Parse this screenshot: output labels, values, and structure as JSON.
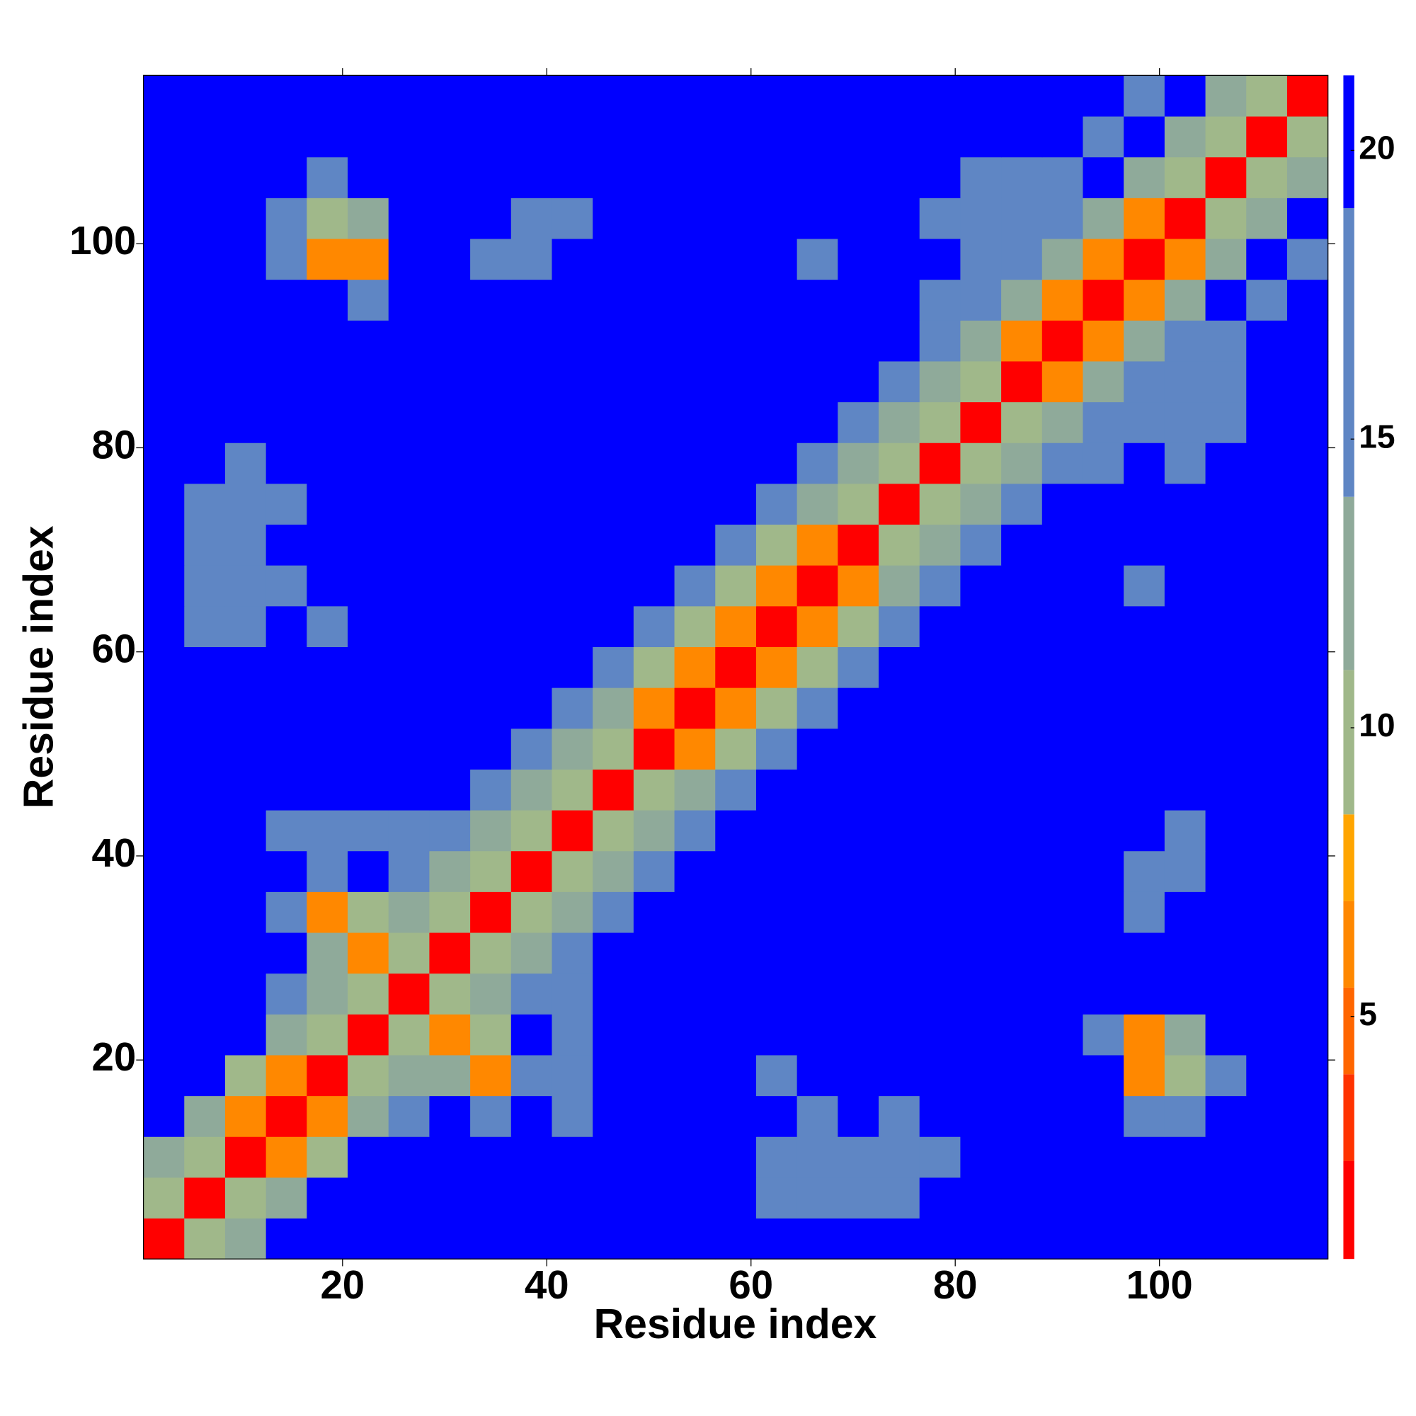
{
  "chart_data": {
    "type": "heatmap",
    "xlabel": "Residue index",
    "ylabel": "Residue index",
    "x": [
      2.5,
      6.5,
      10.5,
      14.5,
      18.5,
      22.5,
      26.5,
      30.5,
      34.5,
      38.5,
      42.5,
      46.5,
      50.5,
      54.5,
      58.5,
      62.5,
      66.5,
      70.5,
      74.5,
      78.5,
      82.5,
      86.5,
      90.5,
      94.5,
      98.5,
      102.5,
      106.5,
      110.5,
      114.5
    ],
    "y": [
      2.5,
      6.5,
      10.5,
      14.5,
      18.5,
      22.5,
      26.5,
      30.5,
      34.5,
      38.5,
      42.5,
      46.5,
      50.5,
      54.5,
      58.5,
      62.5,
      66.5,
      70.5,
      74.5,
      78.5,
      82.5,
      86.5,
      90.5,
      94.5,
      98.5,
      102.5,
      106.5,
      110.5,
      114.5
    ],
    "z": [
      [
        2,
        9,
        13,
        21,
        21,
        21,
        21,
        21,
        21,
        21,
        21,
        21,
        21,
        21,
        21,
        21,
        21,
        21,
        21,
        21,
        21,
        21,
        21,
        21,
        21,
        21,
        21,
        21,
        21
      ],
      [
        9,
        2,
        9,
        13,
        21,
        21,
        21,
        21,
        21,
        21,
        21,
        21,
        21,
        21,
        21,
        16,
        16,
        17,
        18,
        21,
        21,
        21,
        21,
        21,
        21,
        21,
        21,
        21,
        21
      ],
      [
        13,
        9,
        2,
        7,
        9,
        21,
        21,
        21,
        21,
        21,
        21,
        21,
        21,
        21,
        21,
        16,
        16,
        16,
        16,
        17,
        21,
        21,
        21,
        21,
        21,
        21,
        21,
        21,
        21
      ],
      [
        21,
        13,
        7,
        2,
        7,
        13,
        17,
        21,
        16,
        21,
        18,
        21,
        21,
        21,
        21,
        21,
        17,
        21,
        18,
        21,
        21,
        21,
        21,
        21,
        17,
        17,
        21,
        21,
        21
      ],
      [
        21,
        21,
        9,
        7,
        2,
        9,
        13,
        13,
        6,
        15,
        17,
        21,
        21,
        21,
        21,
        18,
        21,
        21,
        21,
        21,
        21,
        21,
        21,
        21,
        6,
        9,
        17,
        21,
        21
      ],
      [
        21,
        21,
        21,
        13,
        9,
        2,
        9,
        6,
        10,
        21,
        16,
        21,
        21,
        21,
        21,
        21,
        21,
        21,
        21,
        21,
        21,
        21,
        21,
        17,
        6,
        12,
        21,
        21,
        21
      ],
      [
        21,
        21,
        21,
        17,
        13,
        9,
        2,
        9,
        13,
        17,
        16,
        21,
        21,
        21,
        21,
        21,
        21,
        21,
        21,
        21,
        21,
        21,
        21,
        21,
        21,
        21,
        21,
        21,
        21
      ],
      [
        21,
        21,
        21,
        21,
        13,
        6,
        9,
        2,
        9,
        13,
        17,
        21,
        21,
        21,
        21,
        21,
        21,
        21,
        21,
        21,
        21,
        21,
        21,
        21,
        21,
        21,
        21,
        21,
        21
      ],
      [
        21,
        21,
        21,
        16,
        6,
        10,
        13,
        9,
        2,
        9,
        13,
        17,
        21,
        21,
        21,
        21,
        21,
        21,
        21,
        21,
        21,
        21,
        21,
        21,
        16,
        21,
        21,
        21,
        21
      ],
      [
        21,
        21,
        21,
        21,
        15,
        21,
        17,
        13,
        9,
        2,
        9,
        13,
        17,
        21,
        21,
        21,
        21,
        21,
        21,
        21,
        21,
        21,
        21,
        21,
        15,
        16,
        21,
        21,
        21
      ],
      [
        21,
        21,
        21,
        18,
        17,
        16,
        16,
        17,
        13,
        9,
        2,
        9,
        13,
        17,
        21,
        21,
        21,
        21,
        21,
        21,
        21,
        21,
        21,
        21,
        21,
        17,
        21,
        21,
        21
      ],
      [
        21,
        21,
        21,
        21,
        21,
        21,
        21,
        21,
        17,
        13,
        9,
        2,
        9,
        13,
        17,
        21,
        21,
        21,
        21,
        21,
        21,
        21,
        21,
        21,
        21,
        21,
        21,
        21,
        21
      ],
      [
        21,
        21,
        21,
        21,
        21,
        21,
        21,
        21,
        21,
        17,
        13,
        9,
        2,
        6,
        9,
        17,
        21,
        21,
        21,
        21,
        21,
        21,
        21,
        21,
        21,
        21,
        21,
        21,
        21
      ],
      [
        21,
        21,
        21,
        21,
        21,
        21,
        21,
        21,
        21,
        21,
        17,
        13,
        6,
        2,
        6,
        9,
        17,
        21,
        21,
        21,
        21,
        21,
        21,
        21,
        21,
        21,
        21,
        21,
        21
      ],
      [
        21,
        21,
        21,
        21,
        21,
        21,
        21,
        21,
        21,
        21,
        21,
        17,
        9,
        6,
        2,
        6,
        9,
        17,
        21,
        21,
        21,
        21,
        21,
        21,
        21,
        21,
        21,
        21,
        21
      ],
      [
        21,
        16,
        16,
        21,
        18,
        21,
        21,
        21,
        21,
        21,
        21,
        21,
        17,
        9,
        6,
        2,
        6,
        9,
        17,
        21,
        21,
        21,
        21,
        21,
        21,
        21,
        21,
        21,
        21
      ],
      [
        21,
        16,
        16,
        17,
        21,
        21,
        21,
        21,
        21,
        21,
        21,
        21,
        21,
        17,
        9,
        6,
        2,
        6,
        13,
        17,
        21,
        21,
        21,
        21,
        18,
        21,
        21,
        21,
        21
      ],
      [
        21,
        17,
        16,
        21,
        21,
        21,
        21,
        21,
        21,
        21,
        21,
        21,
        21,
        21,
        17,
        9,
        6,
        2,
        9,
        13,
        17,
        21,
        21,
        21,
        21,
        21,
        21,
        21,
        21
      ],
      [
        21,
        18,
        16,
        18,
        21,
        21,
        21,
        21,
        21,
        21,
        21,
        21,
        21,
        21,
        21,
        17,
        13,
        9,
        2,
        9,
        13,
        17,
        21,
        21,
        21,
        21,
        21,
        21,
        21
      ],
      [
        21,
        21,
        17,
        21,
        21,
        21,
        21,
        21,
        21,
        21,
        21,
        21,
        21,
        21,
        21,
        21,
        17,
        13,
        9,
        2,
        9,
        12,
        17,
        16,
        21,
        17,
        21,
        21,
        21
      ],
      [
        21,
        21,
        21,
        21,
        21,
        21,
        21,
        21,
        21,
        21,
        21,
        21,
        21,
        21,
        21,
        21,
        21,
        17,
        13,
        9,
        2,
        9,
        12,
        17,
        16,
        18,
        17,
        21,
        21
      ],
      [
        21,
        21,
        21,
        21,
        21,
        21,
        21,
        21,
        21,
        21,
        21,
        21,
        21,
        21,
        21,
        21,
        21,
        21,
        17,
        12,
        9,
        2,
        7,
        12,
        17,
        17,
        16,
        21,
        21
      ],
      [
        21,
        21,
        21,
        21,
        21,
        21,
        21,
        21,
        21,
        21,
        21,
        21,
        21,
        21,
        21,
        21,
        21,
        21,
        21,
        17,
        12,
        7,
        2,
        7,
        12,
        17,
        16,
        21,
        21
      ],
      [
        21,
        21,
        21,
        21,
        21,
        17,
        21,
        21,
        21,
        21,
        21,
        21,
        21,
        21,
        21,
        21,
        21,
        21,
        21,
        16,
        17,
        12,
        7,
        2,
        7,
        12,
        21,
        16,
        21
      ],
      [
        21,
        21,
        21,
        17,
        6,
        6,
        21,
        21,
        16,
        15,
        21,
        21,
        21,
        21,
        21,
        21,
        18,
        21,
        21,
        21,
        16,
        17,
        12,
        7,
        2,
        7,
        12,
        21,
        17
      ],
      [
        21,
        21,
        21,
        17,
        9,
        12,
        21,
        21,
        21,
        16,
        17,
        21,
        21,
        21,
        21,
        21,
        21,
        21,
        21,
        17,
        18,
        17,
        17,
        12,
        7,
        2,
        9,
        13,
        21
      ],
      [
        21,
        21,
        21,
        21,
        17,
        21,
        21,
        21,
        21,
        21,
        21,
        21,
        21,
        21,
        21,
        21,
        21,
        21,
        21,
        21,
        17,
        16,
        16,
        21,
        12,
        9,
        2,
        9,
        13
      ],
      [
        21,
        21,
        21,
        21,
        21,
        21,
        21,
        21,
        21,
        21,
        21,
        21,
        21,
        21,
        21,
        21,
        21,
        21,
        21,
        21,
        21,
        21,
        21,
        16,
        21,
        13,
        9,
        2,
        9
      ],
      [
        21,
        21,
        21,
        21,
        21,
        21,
        21,
        21,
        21,
        21,
        21,
        21,
        21,
        21,
        21,
        21,
        21,
        21,
        21,
        21,
        21,
        21,
        21,
        21,
        17,
        21,
        13,
        9,
        2
      ]
    ],
    "xlim": [
      0.5,
      116.5
    ],
    "ylim": [
      0.5,
      116.5
    ],
    "xticks": [
      20,
      40,
      60,
      80,
      100
    ],
    "yticks": [
      20,
      40,
      60,
      80,
      100
    ],
    "colorscale": [
      [
        2.5,
        "#ff0000"
      ],
      [
        4,
        "#ff3300"
      ],
      [
        5.5,
        "#ff6600"
      ],
      [
        7,
        "#ff8800"
      ],
      [
        8.5,
        "#ffa500"
      ],
      [
        11,
        "#a0b88a"
      ],
      [
        14,
        "#8faa9a"
      ],
      [
        19,
        "#5f86c4"
      ],
      [
        21.3,
        "#0000ff"
      ]
    ],
    "clim": [
      0.8,
      21.3
    ],
    "cticks": [
      5,
      10,
      15,
      20
    ]
  }
}
